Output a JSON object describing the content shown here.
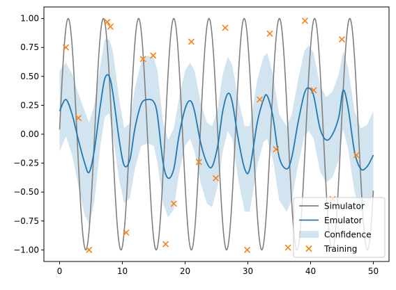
{
  "chart_data": {
    "type": "line",
    "title": "",
    "xlabel": "",
    "ylabel": "",
    "xlim": [
      -2.5,
      52.5
    ],
    "ylim": [
      -1.1,
      1.1
    ],
    "x_ticks": [
      0,
      10,
      20,
      30,
      40,
      50
    ],
    "x_tick_labels": [
      "0",
      "10",
      "20",
      "30",
      "40",
      "50"
    ],
    "y_ticks": [
      -1.0,
      -0.75,
      -0.5,
      -0.25,
      0.0,
      0.25,
      0.5,
      0.75,
      1.0
    ],
    "y_tick_labels": [
      "−1.00",
      "−0.75",
      "−0.50",
      "−0.25",
      "0.00",
      "0.25",
      "0.50",
      "0.75",
      "1.00"
    ],
    "grid": false,
    "legend_position": "bottom-right",
    "series": [
      {
        "name": "Simulator",
        "kind": "line",
        "color": "#7f7f7f",
        "function": "sin",
        "frequency": 1.12,
        "phase": 0.04,
        "x_range": [
          0,
          50
        ]
      },
      {
        "name": "Emulator",
        "kind": "line",
        "color": "#1f77b4",
        "x": [
          0,
          1,
          2,
          3,
          4,
          4.7,
          5.5,
          6.5,
          7.2,
          7.9,
          8.5,
          9.5,
          10.3,
          11.2,
          12,
          13,
          14,
          15,
          15.6,
          16.5,
          17.3,
          18.2,
          19,
          20,
          20.8,
          21.5,
          22.5,
          23.5,
          24.3,
          25.2,
          26,
          26.8,
          27.5,
          28.5,
          29.5,
          30.3,
          31.5,
          32.5,
          33.1,
          34,
          35,
          36.2,
          37,
          38,
          39,
          39.7,
          40.5,
          41.5,
          42.5,
          43.5,
          44.5,
          45.2,
          46,
          47,
          48,
          49,
          50
        ],
        "y": [
          0.2,
          0.3,
          0.17,
          -0.05,
          -0.25,
          -0.33,
          -0.15,
          0.25,
          0.48,
          0.5,
          0.35,
          -0.05,
          -0.27,
          -0.22,
          0.05,
          0.26,
          0.3,
          0.28,
          0.16,
          -0.25,
          -0.38,
          -0.3,
          -0.02,
          0.22,
          0.29,
          0.2,
          -0.08,
          -0.25,
          -0.28,
          -0.1,
          0.2,
          0.35,
          0.28,
          -0.05,
          -0.3,
          -0.3,
          0.1,
          0.3,
          0.33,
          0.15,
          -0.2,
          -0.3,
          -0.2,
          0.1,
          0.35,
          0.4,
          0.33,
          0.05,
          -0.05,
          0.0,
          0.15,
          0.38,
          0.22,
          -0.15,
          -0.3,
          -0.28,
          -0.18
        ]
      },
      {
        "name": "Confidence",
        "kind": "band",
        "color": "#1f77b4",
        "opacity": 0.2,
        "x": [
          0,
          1,
          2,
          3,
          4,
          4.7,
          5.5,
          6.5,
          7.2,
          7.9,
          8.5,
          9.5,
          10.3,
          11.2,
          12,
          13,
          14,
          15,
          15.6,
          16.5,
          17.3,
          18.2,
          19,
          20,
          20.8,
          21.5,
          22.5,
          23.5,
          24.3,
          25.2,
          26,
          26.8,
          27.5,
          28.5,
          29.5,
          30.3,
          31.5,
          32.5,
          33.1,
          34,
          35,
          36.2,
          37,
          38,
          39,
          39.7,
          40.5,
          41.5,
          42.5,
          43.5,
          44.5,
          45.2,
          46,
          47,
          48,
          49,
          50
        ],
        "upper": [
          0.55,
          0.62,
          0.52,
          0.35,
          0.2,
          0.1,
          0.25,
          0.6,
          0.82,
          0.82,
          0.72,
          0.3,
          0.05,
          0.1,
          0.4,
          0.62,
          0.68,
          0.66,
          0.55,
          0.1,
          -0.05,
          0.05,
          0.3,
          0.55,
          0.62,
          0.55,
          0.27,
          0.1,
          0.07,
          0.22,
          0.52,
          0.67,
          0.6,
          0.3,
          0.07,
          0.07,
          0.47,
          0.67,
          0.7,
          0.52,
          0.17,
          0.07,
          0.17,
          0.47,
          0.72,
          0.77,
          0.7,
          0.42,
          0.32,
          0.37,
          0.52,
          0.72,
          0.57,
          0.2,
          0.05,
          0.08,
          0.2
        ],
        "lower": [
          -0.15,
          -0.02,
          -0.18,
          -0.45,
          -0.7,
          -0.78,
          -0.6,
          -0.1,
          0.15,
          0.18,
          -0.02,
          -0.4,
          -0.6,
          -0.55,
          -0.3,
          -0.1,
          -0.08,
          -0.1,
          -0.25,
          -0.6,
          -0.72,
          -0.65,
          -0.35,
          -0.1,
          -0.04,
          -0.15,
          -0.43,
          -0.6,
          -0.63,
          -0.45,
          -0.15,
          0.03,
          -0.04,
          -0.4,
          -0.67,
          -0.67,
          -0.27,
          -0.07,
          -0.04,
          -0.22,
          -0.57,
          -0.67,
          -0.57,
          -0.27,
          -0.02,
          0.03,
          -0.04,
          -0.32,
          -0.42,
          -0.37,
          -0.22,
          0.04,
          -0.13,
          -0.5,
          -0.67,
          -0.64,
          -0.53
        ]
      },
      {
        "name": "Training",
        "kind": "scatter",
        "marker": "x",
        "color": "#ff7f0e",
        "x": [
          1.0,
          3.0,
          4.7,
          7.6,
          8.1,
          10.6,
          13.3,
          14.9,
          16.9,
          18.2,
          21.0,
          22.2,
          24.9,
          26.4,
          29.9,
          31.9,
          33.5,
          34.5,
          36.4,
          39.1,
          40.5,
          43.5,
          45.0,
          47.3
        ],
        "y": [
          0.75,
          0.14,
          -1.0,
          0.97,
          0.93,
          -0.85,
          0.65,
          0.68,
          -0.95,
          -0.6,
          0.8,
          -0.24,
          -0.38,
          0.92,
          -1.0,
          0.3,
          0.87,
          -0.13,
          -0.98,
          0.98,
          0.38,
          -0.56,
          0.82,
          -0.18
        ]
      }
    ],
    "legend": [
      "Simulator",
      "Emulator",
      "Confidence",
      "Training"
    ]
  }
}
